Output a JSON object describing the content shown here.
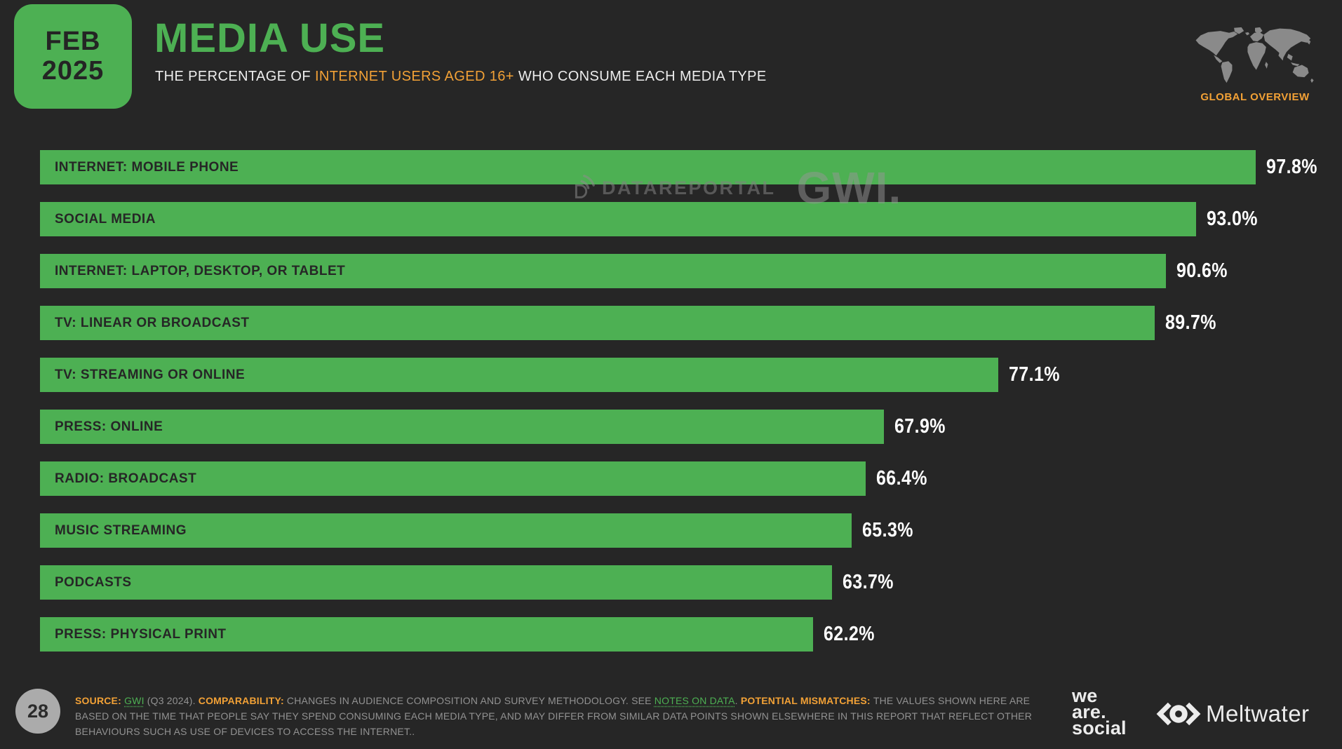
{
  "slide": {
    "date_badge": {
      "month": "FEB",
      "year": "2025"
    },
    "title": "MEDIA USE",
    "subtitle_segments": [
      {
        "text": "THE PERCENTAGE OF ",
        "style": "plain"
      },
      {
        "text": "INTERNET USERS AGED 16+",
        "style": "em"
      },
      {
        "text": " WHO CONSUME EACH MEDIA TYPE",
        "style": "plain"
      }
    ],
    "region_label": "GLOBAL OVERVIEW",
    "watermark": {
      "brand1": "DATAREPORTAL",
      "brand2": "GWI."
    },
    "page_number": "28",
    "footnote_segments": [
      {
        "text": "SOURCE: ",
        "style": "em"
      },
      {
        "text": "GWI",
        "style": "link"
      },
      {
        "text": " (Q3 2024). ",
        "style": "plain"
      },
      {
        "text": "COMPARABILITY: ",
        "style": "em"
      },
      {
        "text": "CHANGES IN AUDIENCE COMPOSITION AND SURVEY METHODOLOGY. SEE ",
        "style": "plain"
      },
      {
        "text": "NOTES ON DATA",
        "style": "link"
      },
      {
        "text": ". ",
        "style": "plain"
      },
      {
        "text": "POTENTIAL MISMATCHES: ",
        "style": "em"
      },
      {
        "text": "THE VALUES SHOWN HERE ARE BASED ON THE TIME THAT PEOPLE SAY THEY SPEND CONSUMING EACH MEDIA TYPE, AND MAY DIFFER FROM SIMILAR DATA POINTS SHOWN ELSEWHERE IN THIS REPORT THAT REFLECT OTHER BEHAVIOURS SUCH AS USE OF DEVICES TO ACCESS THE INTERNET..",
        "style": "plain"
      }
    ],
    "logos": {
      "we_are_social": [
        "we",
        "are.",
        "social"
      ],
      "meltwater": "Meltwater"
    }
  },
  "chart_data": {
    "type": "bar",
    "orientation": "horizontal",
    "title": "MEDIA USE",
    "subtitle": "THE PERCENTAGE OF INTERNET USERS AGED 16+ WHO CONSUME EACH MEDIA TYPE",
    "source": "GWI (Q3 2024)",
    "categories": [
      "INTERNET: MOBILE PHONE",
      "SOCIAL MEDIA",
      "INTERNET: LAPTOP, DESKTOP, OR TABLET",
      "TV: LINEAR OR BROADCAST",
      "TV: STREAMING OR ONLINE",
      "PRESS: ONLINE",
      "RADIO: BROADCAST",
      "MUSIC STREAMING",
      "PODCASTS",
      "PRESS: PHYSICAL PRINT"
    ],
    "values": [
      97.8,
      93.0,
      90.6,
      89.7,
      77.1,
      67.9,
      66.4,
      65.3,
      63.7,
      62.2
    ],
    "value_labels": [
      "97.8%",
      "93.0%",
      "90.6%",
      "89.7%",
      "77.1%",
      "67.9%",
      "66.4%",
      "65.3%",
      "63.7%",
      "62.2%"
    ],
    "unit": "%",
    "xlim": [
      0,
      100
    ],
    "grid": false,
    "legend": false,
    "bar_color": "#4db053",
    "category_label_color": "#262626",
    "value_label_color": "#ffffff",
    "background_color": "#262626"
  },
  "colors": {
    "background": "#262626",
    "green": "#4db053",
    "orange": "#f2a136",
    "muted_text": "#929292",
    "map_gray": "#8a8a8a",
    "page_circle": "#ababab"
  }
}
